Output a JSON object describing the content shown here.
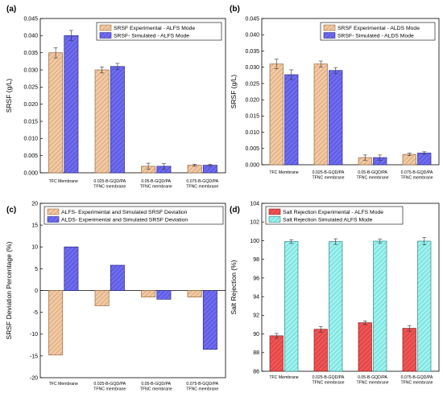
{
  "colors": {
    "orange": "#f2c9a3",
    "orange_stroke": "#9a6a40",
    "orange_hatch": "#c08a58",
    "blue": "#6f6cf0",
    "blue_stroke": "#2b2b8a",
    "blue_hatch": "#3b3bb8",
    "red": "#f15454",
    "red_stroke": "#8a1f1f",
    "red_hatch": "#b52d2d",
    "cyan": "#9ff2ee",
    "cyan_stroke": "#2b8a86",
    "cyan_hatch": "#3fc1bc"
  },
  "chart_data": [
    {
      "panel": "(a)",
      "type": "bar",
      "categories": [
        "TFC Membrane",
        "0.025-B-GQD/PA TFNC membrane",
        "0.05-B-GQD/PA TFNC membrane",
        "0.075-B-GQD/PA TFNC membrane"
      ],
      "series": [
        {
          "name": "SRSF Experimental - ALFS Mode",
          "values": [
            0.035,
            0.03,
            0.0019,
            0.0022
          ],
          "errors": [
            0.0015,
            0.0009,
            0.0009,
            0.0003
          ]
        },
        {
          "name": "SRSF- Simulated - ALFS Mode",
          "values": [
            0.04,
            0.031,
            0.0019,
            0.0022
          ],
          "errors": [
            0.0015,
            0.0009,
            0.0008,
            0.0003
          ]
        }
      ],
      "ylabel": "SRSF (g/L)",
      "ylim": [
        0,
        0.045
      ],
      "yticks": [
        "0.000",
        "0.005",
        "0.010",
        "0.015",
        "0.020",
        "0.025",
        "0.030",
        "0.035",
        "0.040",
        "0.045"
      ],
      "legend": "top-right"
    },
    {
      "panel": "(b)",
      "type": "bar",
      "categories": [
        "TFC Membrane",
        "0.025-B-GQD/PA TFNC membrane",
        "0.05-B-GQD/PA TFNC membrane",
        "0.075-B-GQD/PA TFNC membrane"
      ],
      "series": [
        {
          "name": "SRSF Experimental - ALDS Mode",
          "values": [
            0.031,
            0.031,
            0.0022,
            0.0032
          ],
          "errors": [
            0.0015,
            0.0009,
            0.0008,
            0.0004
          ]
        },
        {
          "name": "SRSF- Simulated - ALDS Mode",
          "values": [
            0.0277,
            0.029,
            0.0022,
            0.0036
          ],
          "errors": [
            0.0015,
            0.0009,
            0.0008,
            0.0004
          ]
        }
      ],
      "ylabel": "SRSF (g/L)",
      "ylim": [
        0,
        0.045
      ],
      "yticks": [
        "0.000",
        "0.005",
        "0.010",
        "0.015",
        "0.020",
        "0.025",
        "0.030",
        "0.035",
        "0.040",
        "0.045"
      ],
      "legend": "top-right"
    },
    {
      "panel": "(c)",
      "type": "bar",
      "categories": [
        "TFC Membrane",
        "0.025-B-GQD/PA TFNC membrane",
        "0.05-B-GQD/PA TFNC membrane",
        "0.075-B-GQD/PA TFNC membrane"
      ],
      "series": [
        {
          "name": "ALFS- Experimental and Simulated SRSF Deviation",
          "values": [
            -14.8,
            -3.5,
            -1.5,
            -1.5
          ]
        },
        {
          "name": "ALDS- Experimental and Simulated SRSF Deviation",
          "values": [
            10.0,
            5.8,
            -2.0,
            -13.5
          ]
        }
      ],
      "ylabel": "SRSF Deviation Percentage (%)",
      "ylim": [
        -20,
        20
      ],
      "yticks": [
        "-20",
        "-15",
        "-10",
        "-5",
        "0",
        "5",
        "10",
        "15",
        "20"
      ],
      "legend": "top-right"
    },
    {
      "panel": "(d)",
      "type": "bar",
      "categories": [
        "TFC Membrane",
        "0.025-B-GQD/PA TFNC membrane",
        "0.05-B-GQD/PA TFNC membrane",
        "0.075-B-GQD/PA TFNC membrane"
      ],
      "series": [
        {
          "name": "Salt Rejection Experimental - ALFS Mode",
          "values": [
            89.8,
            90.5,
            91.2,
            90.6
          ],
          "errors": [
            0.25,
            0.3,
            0.2,
            0.3
          ]
        },
        {
          "name": "Salt Rejection Simulated ALFS Mode",
          "values": [
            99.9,
            99.9,
            99.95,
            99.95
          ],
          "errors": [
            0.2,
            0.3,
            0.2,
            0.4
          ]
        }
      ],
      "ylabel": "Salt Rejection (%)",
      "ylim": [
        86,
        104
      ],
      "yticks": [
        "86",
        "88",
        "90",
        "92",
        "94",
        "96",
        "98",
        "100",
        "102",
        "104"
      ],
      "legend": "top-left"
    }
  ]
}
